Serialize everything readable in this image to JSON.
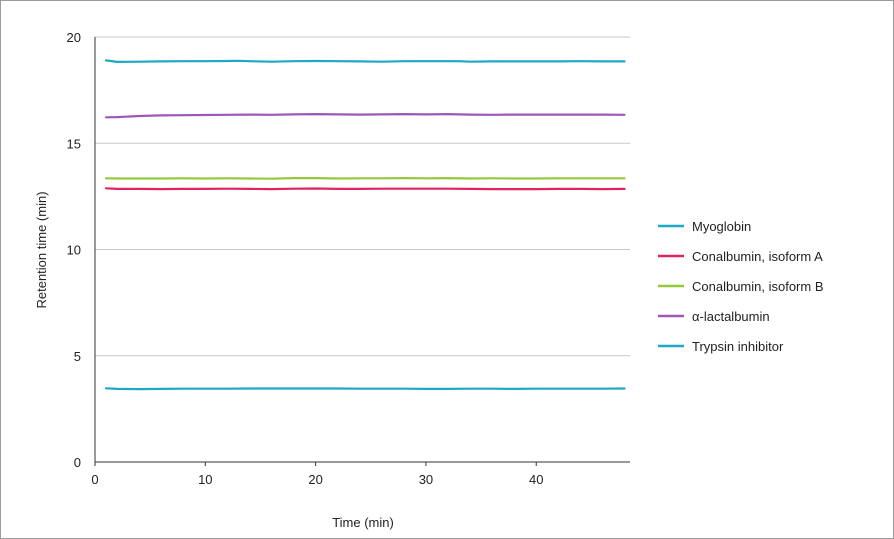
{
  "chart_data": {
    "type": "line",
    "title": "",
    "xlabel": "Time (min)",
    "ylabel": "Retention time (min)",
    "xlim": [
      0,
      48.5
    ],
    "ylim": [
      0,
      20
    ],
    "x_ticks": [
      0,
      10,
      20,
      30,
      40
    ],
    "y_ticks": [
      0,
      5,
      10,
      15,
      20
    ],
    "grid": "horizontal",
    "legend_position": "right",
    "series": [
      {
        "name": "Myoglobin",
        "color": "#1fa7c6",
        "x": [
          1,
          2,
          4,
          6,
          8,
          10,
          12,
          13,
          14,
          16,
          18,
          20,
          22,
          24,
          26,
          28,
          30,
          32,
          33,
          34,
          36,
          38,
          40,
          42,
          44,
          46,
          48
        ],
        "y": [
          18.9,
          18.83,
          18.84,
          18.85,
          18.86,
          18.86,
          18.87,
          18.88,
          18.86,
          18.84,
          18.86,
          18.87,
          18.86,
          18.85,
          18.84,
          18.86,
          18.86,
          18.86,
          18.86,
          18.84,
          18.85,
          18.85,
          18.85,
          18.85,
          18.86,
          18.85,
          18.85
        ]
      },
      {
        "name": "Conalbumin, isoform A",
        "color": "#e0245e",
        "x": [
          1,
          2,
          4,
          6,
          8,
          10,
          12,
          14,
          16,
          18,
          20,
          22,
          24,
          26,
          28,
          30,
          32,
          34,
          36,
          38,
          40,
          42,
          44,
          46,
          48
        ],
        "y": [
          12.88,
          12.85,
          12.85,
          12.84,
          12.85,
          12.85,
          12.86,
          12.85,
          12.84,
          12.86,
          12.87,
          12.85,
          12.85,
          12.86,
          12.86,
          12.86,
          12.86,
          12.85,
          12.84,
          12.84,
          12.84,
          12.85,
          12.85,
          12.84,
          12.85
        ]
      },
      {
        "name": "Conalbumin, isoform B",
        "color": "#95c93d",
        "x": [
          1,
          2,
          4,
          6,
          8,
          10,
          12,
          14,
          16,
          18,
          20,
          22,
          24,
          26,
          28,
          30,
          32,
          34,
          36,
          38,
          40,
          42,
          44,
          46,
          48
        ],
        "y": [
          13.35,
          13.34,
          13.34,
          13.34,
          13.35,
          13.34,
          13.35,
          13.34,
          13.33,
          13.36,
          13.36,
          13.34,
          13.35,
          13.35,
          13.36,
          13.35,
          13.36,
          13.34,
          13.35,
          13.34,
          13.34,
          13.35,
          13.35,
          13.35,
          13.35
        ]
      },
      {
        "name": "α-lactalbumin",
        "color": "#9b59b6",
        "x": [
          1,
          2,
          4,
          6,
          8,
          10,
          12,
          14,
          16,
          18,
          20,
          22,
          24,
          26,
          28,
          30,
          32,
          34,
          36,
          38,
          40,
          42,
          44,
          46,
          48
        ],
        "y": [
          16.22,
          16.23,
          16.28,
          16.31,
          16.32,
          16.33,
          16.34,
          16.35,
          16.34,
          16.36,
          16.37,
          16.36,
          16.35,
          16.36,
          16.37,
          16.36,
          16.37,
          16.35,
          16.34,
          16.35,
          16.35,
          16.35,
          16.35,
          16.35,
          16.34
        ]
      },
      {
        "name": "Trypsin inhibitor",
        "color": "#1fa7c6",
        "x": [
          1,
          2,
          4,
          6,
          8,
          10,
          12,
          14,
          16,
          18,
          20,
          22,
          24,
          26,
          28,
          30,
          32,
          34,
          36,
          38,
          40,
          42,
          44,
          46,
          48
        ],
        "y": [
          3.47,
          3.44,
          3.43,
          3.44,
          3.45,
          3.45,
          3.45,
          3.46,
          3.46,
          3.46,
          3.46,
          3.46,
          3.45,
          3.45,
          3.45,
          3.44,
          3.44,
          3.45,
          3.45,
          3.44,
          3.45,
          3.45,
          3.45,
          3.45,
          3.46
        ]
      }
    ]
  }
}
